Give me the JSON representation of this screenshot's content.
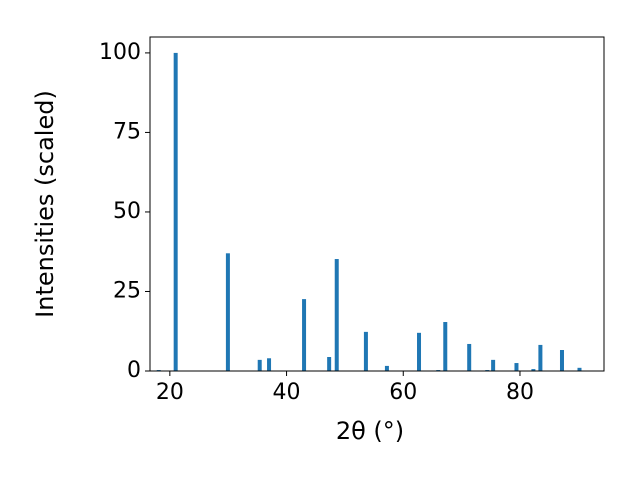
{
  "chart_data": {
    "type": "bar",
    "x_label": "2θ (°)",
    "y_label": "Intensities (scaled)",
    "x": [
      18.1,
      21.0,
      29.95,
      35.4,
      37.0,
      43.0,
      47.3,
      48.6,
      53.6,
      57.2,
      62.7,
      66.0,
      67.2,
      71.3,
      74.4,
      75.4,
      79.4,
      82.3,
      83.5,
      87.2,
      90.2
    ],
    "values": [
      0.3,
      100,
      37,
      3.5,
      4,
      22.6,
      4.4,
      35.2,
      12.3,
      1.6,
      12,
      0.3,
      15.4,
      8.5,
      0.3,
      3.5,
      2.5,
      0.6,
      8.2,
      6.6,
      1
    ],
    "color": "#1f77b4",
    "xlim": [
      16.6,
      94.4
    ],
    "ylim": [
      0,
      105
    ],
    "xticks": [
      20,
      40,
      60,
      80
    ],
    "yticks": [
      0,
      25,
      50,
      75,
      100
    ],
    "grid": false
  }
}
